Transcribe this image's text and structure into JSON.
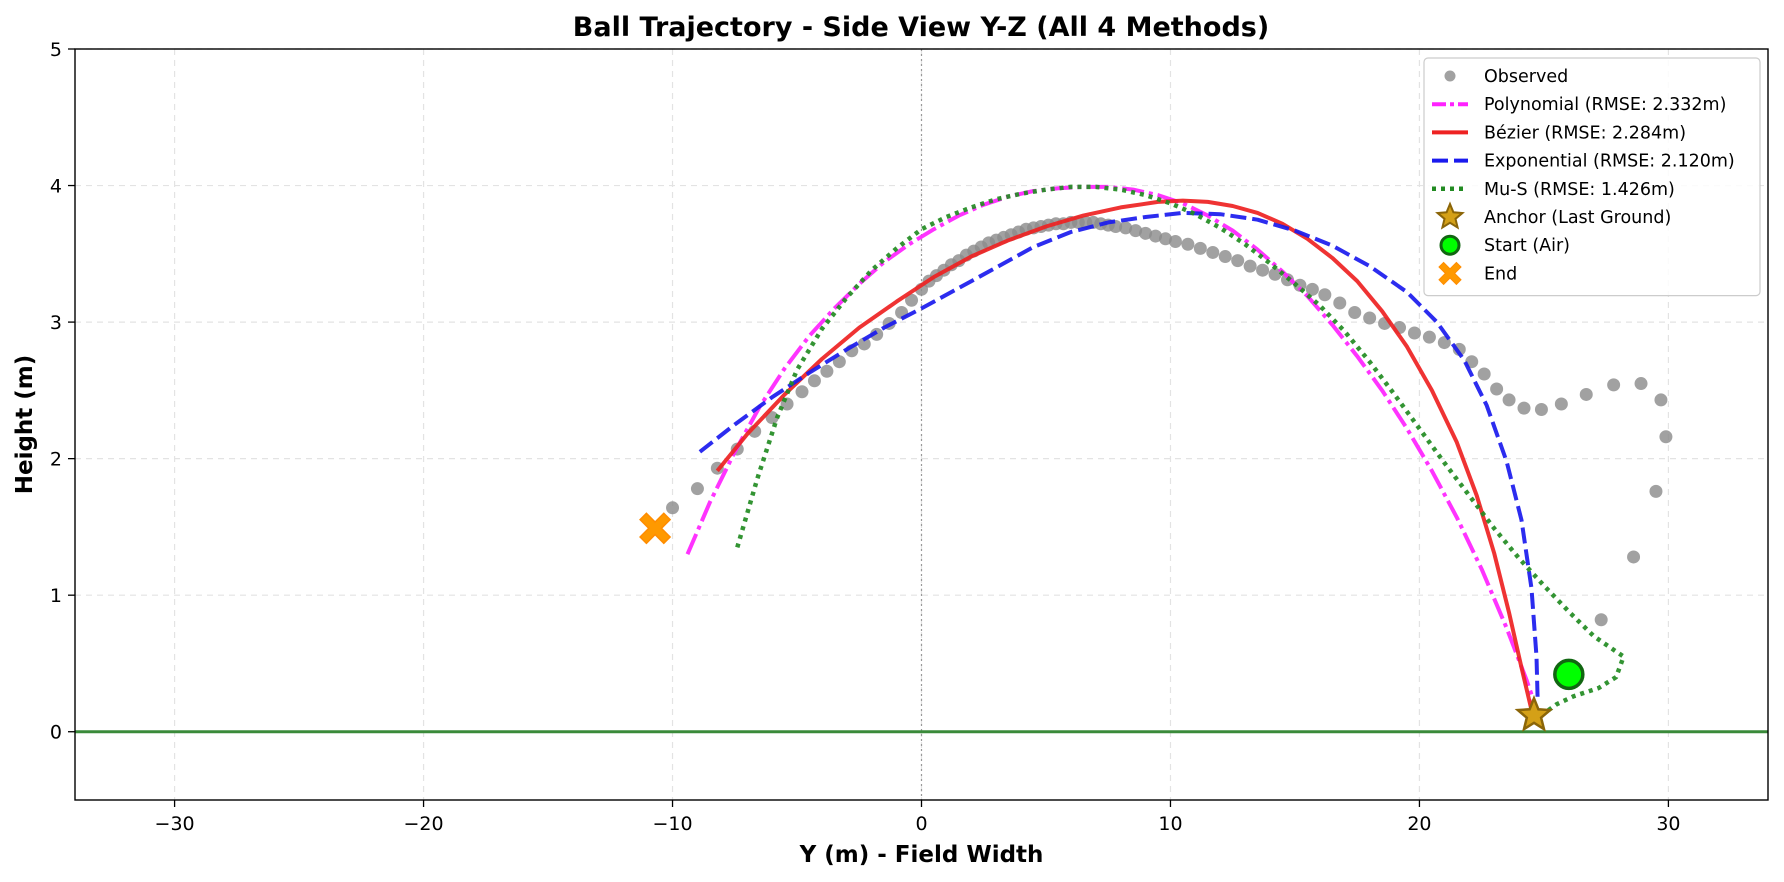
{
  "chart_data": {
    "type": "scatter",
    "title": "Ball Trajectory - Side View Y-Z (All 4 Methods)",
    "xlabel": "Y (m) - Field Width",
    "ylabel": "Height (m)",
    "xlim": [
      -34,
      34
    ],
    "ylim": [
      -0.5,
      5
    ],
    "xticks": [
      -30,
      -20,
      -10,
      0,
      10,
      20,
      30
    ],
    "yticks": [
      0,
      1,
      2,
      3,
      4,
      5
    ],
    "xtick_labels": [
      "−30",
      "−20",
      "−10",
      "0",
      "10",
      "20",
      "30"
    ],
    "ytick_labels": [
      "0",
      "1",
      "2",
      "3",
      "4",
      "5"
    ],
    "grid": true,
    "legend_position": "top-right",
    "reference_lines": {
      "ground_z": 0,
      "ground_color": "#3a8a3a",
      "center_y": 0,
      "center_color": "#999999"
    },
    "series": [
      {
        "name": "Observed",
        "kind": "scatter",
        "color": "#8c8c8c",
        "points": [
          [
            -10.0,
            1.64
          ],
          [
            -9.0,
            1.78
          ],
          [
            -8.2,
            1.93
          ],
          [
            -7.4,
            2.07
          ],
          [
            -6.7,
            2.2
          ],
          [
            -6.0,
            2.3
          ],
          [
            -5.4,
            2.4
          ],
          [
            -4.8,
            2.49
          ],
          [
            -4.3,
            2.57
          ],
          [
            -3.8,
            2.64
          ],
          [
            -3.3,
            2.71
          ],
          [
            -2.8,
            2.79
          ],
          [
            -2.3,
            2.84
          ],
          [
            -1.8,
            2.91
          ],
          [
            -1.3,
            2.99
          ],
          [
            -0.8,
            3.07
          ],
          [
            -0.4,
            3.16
          ],
          [
            0.0,
            3.24
          ],
          [
            0.3,
            3.3
          ],
          [
            0.6,
            3.34
          ],
          [
            0.9,
            3.38
          ],
          [
            1.2,
            3.42
          ],
          [
            1.5,
            3.45
          ],
          [
            1.8,
            3.49
          ],
          [
            2.1,
            3.52
          ],
          [
            2.4,
            3.55
          ],
          [
            2.7,
            3.58
          ],
          [
            3.0,
            3.6
          ],
          [
            3.3,
            3.62
          ],
          [
            3.6,
            3.64
          ],
          [
            3.9,
            3.66
          ],
          [
            4.2,
            3.68
          ],
          [
            4.5,
            3.69
          ],
          [
            4.8,
            3.7
          ],
          [
            5.1,
            3.71
          ],
          [
            5.4,
            3.72
          ],
          [
            5.7,
            3.72
          ],
          [
            6.0,
            3.73
          ],
          [
            6.3,
            3.73
          ],
          [
            6.6,
            3.73
          ],
          [
            6.9,
            3.73
          ],
          [
            7.2,
            3.72
          ],
          [
            7.5,
            3.71
          ],
          [
            7.8,
            3.7
          ],
          [
            8.2,
            3.69
          ],
          [
            8.6,
            3.67
          ],
          [
            9.0,
            3.65
          ],
          [
            9.4,
            3.63
          ],
          [
            9.8,
            3.61
          ],
          [
            10.2,
            3.59
          ],
          [
            10.7,
            3.57
          ],
          [
            11.2,
            3.54
          ],
          [
            11.7,
            3.51
          ],
          [
            12.2,
            3.48
          ],
          [
            12.7,
            3.45
          ],
          [
            13.2,
            3.41
          ],
          [
            13.7,
            3.38
          ],
          [
            14.2,
            3.35
          ],
          [
            14.7,
            3.31
          ],
          [
            15.2,
            3.27
          ],
          [
            15.7,
            3.24
          ],
          [
            16.2,
            3.2
          ],
          [
            16.8,
            3.14
          ],
          [
            17.4,
            3.07
          ],
          [
            18.0,
            3.03
          ],
          [
            18.6,
            2.99
          ],
          [
            19.2,
            2.96
          ],
          [
            19.8,
            2.92
          ],
          [
            20.4,
            2.89
          ],
          [
            21.0,
            2.85
          ],
          [
            21.6,
            2.8
          ],
          [
            22.1,
            2.71
          ],
          [
            22.6,
            2.62
          ],
          [
            23.1,
            2.51
          ],
          [
            23.6,
            2.43
          ],
          [
            24.2,
            2.37
          ],
          [
            24.9,
            2.36
          ],
          [
            25.7,
            2.4
          ],
          [
            26.7,
            2.47
          ],
          [
            27.8,
            2.54
          ],
          [
            28.9,
            2.55
          ],
          [
            29.7,
            2.43
          ],
          [
            29.9,
            2.16
          ],
          [
            29.5,
            1.76
          ],
          [
            28.6,
            1.28
          ],
          [
            27.3,
            0.82
          ]
        ]
      },
      {
        "name": "Polynomial (RMSE: 2.332m)",
        "kind": "line",
        "color": "#ff22ff",
        "dash": "22 5 4 5",
        "width": 4,
        "points": [
          [
            -9.4,
            1.3
          ],
          [
            -8.5,
            1.68
          ],
          [
            -7.5,
            2.05
          ],
          [
            -6.5,
            2.38
          ],
          [
            -5.5,
            2.66
          ],
          [
            -4.5,
            2.9
          ],
          [
            -3.5,
            3.1
          ],
          [
            -2.5,
            3.28
          ],
          [
            -1.5,
            3.44
          ],
          [
            -0.5,
            3.57
          ],
          [
            0.5,
            3.68
          ],
          [
            1.5,
            3.78
          ],
          [
            2.5,
            3.86
          ],
          [
            3.5,
            3.92
          ],
          [
            4.5,
            3.96
          ],
          [
            5.5,
            3.98
          ],
          [
            6.5,
            3.99
          ],
          [
            7.5,
            3.99
          ],
          [
            8.5,
            3.97
          ],
          [
            9.5,
            3.93
          ],
          [
            10.5,
            3.87
          ],
          [
            11.5,
            3.78
          ],
          [
            12.5,
            3.67
          ],
          [
            13.5,
            3.53
          ],
          [
            14.5,
            3.37
          ],
          [
            15.5,
            3.19
          ],
          [
            16.5,
            2.98
          ],
          [
            17.5,
            2.75
          ],
          [
            18.5,
            2.5
          ],
          [
            19.5,
            2.22
          ],
          [
            20.5,
            1.91
          ],
          [
            21.5,
            1.57
          ],
          [
            22.5,
            1.19
          ],
          [
            23.5,
            0.76
          ],
          [
            24.3,
            0.38
          ],
          [
            24.6,
            0.22
          ]
        ]
      },
      {
        "name": "Bézier (RMSE: 2.284m)",
        "kind": "line",
        "color": "#ee2222",
        "dash": "",
        "width": 4,
        "points": [
          [
            -8.2,
            1.91
          ],
          [
            -7.0,
            2.18
          ],
          [
            -5.5,
            2.47
          ],
          [
            -4.0,
            2.73
          ],
          [
            -2.5,
            2.96
          ],
          [
            -1.0,
            3.15
          ],
          [
            0.5,
            3.33
          ],
          [
            2.0,
            3.48
          ],
          [
            3.5,
            3.6
          ],
          [
            5.0,
            3.7
          ],
          [
            6.5,
            3.78
          ],
          [
            8.0,
            3.84
          ],
          [
            9.5,
            3.88
          ],
          [
            10.5,
            3.89
          ],
          [
            11.5,
            3.88
          ],
          [
            12.5,
            3.85
          ],
          [
            13.5,
            3.8
          ],
          [
            14.5,
            3.72
          ],
          [
            15.5,
            3.61
          ],
          [
            16.5,
            3.47
          ],
          [
            17.5,
            3.3
          ],
          [
            18.5,
            3.08
          ],
          [
            19.5,
            2.82
          ],
          [
            20.5,
            2.5
          ],
          [
            21.5,
            2.12
          ],
          [
            22.3,
            1.73
          ],
          [
            23.0,
            1.31
          ],
          [
            23.6,
            0.87
          ],
          [
            24.1,
            0.47
          ],
          [
            24.5,
            0.16
          ]
        ]
      },
      {
        "name": "Exponential (RMSE: 2.120m)",
        "kind": "line",
        "color": "#1a1aee",
        "dash": "16 6",
        "width": 4,
        "points": [
          [
            -8.9,
            2.05
          ],
          [
            -7.5,
            2.25
          ],
          [
            -6.0,
            2.45
          ],
          [
            -4.5,
            2.63
          ],
          [
            -3.0,
            2.8
          ],
          [
            -1.5,
            2.96
          ],
          [
            0.0,
            3.1
          ],
          [
            1.5,
            3.25
          ],
          [
            3.0,
            3.4
          ],
          [
            4.5,
            3.55
          ],
          [
            6.0,
            3.66
          ],
          [
            7.5,
            3.73
          ],
          [
            9.0,
            3.77
          ],
          [
            10.5,
            3.8
          ],
          [
            12.0,
            3.79
          ],
          [
            13.5,
            3.75
          ],
          [
            15.0,
            3.67
          ],
          [
            16.5,
            3.56
          ],
          [
            18.0,
            3.41
          ],
          [
            19.5,
            3.22
          ],
          [
            20.7,
            3.0
          ],
          [
            21.8,
            2.72
          ],
          [
            22.7,
            2.39
          ],
          [
            23.5,
            1.98
          ],
          [
            24.1,
            1.55
          ],
          [
            24.5,
            1.05
          ],
          [
            24.7,
            0.55
          ],
          [
            24.75,
            0.22
          ]
        ]
      },
      {
        "name": "Mu-S (RMSE: 1.426m)",
        "kind": "line",
        "color": "#228b22",
        "dash": "4 5",
        "width": 4.5,
        "points": [
          [
            -7.4,
            1.35
          ],
          [
            -6.6,
            1.85
          ],
          [
            -5.8,
            2.3
          ],
          [
            -5.0,
            2.65
          ],
          [
            -4.0,
            2.95
          ],
          [
            -3.0,
            3.18
          ],
          [
            -2.0,
            3.38
          ],
          [
            -1.0,
            3.54
          ],
          [
            0.0,
            3.68
          ],
          [
            1.0,
            3.77
          ],
          [
            2.0,
            3.84
          ],
          [
            3.0,
            3.9
          ],
          [
            4.0,
            3.94
          ],
          [
            5.0,
            3.97
          ],
          [
            6.0,
            3.99
          ],
          [
            7.0,
            3.99
          ],
          [
            8.0,
            3.97
          ],
          [
            9.0,
            3.93
          ],
          [
            10.0,
            3.87
          ],
          [
            11.0,
            3.79
          ],
          [
            12.0,
            3.69
          ],
          [
            13.0,
            3.57
          ],
          [
            14.0,
            3.43
          ],
          [
            15.0,
            3.28
          ],
          [
            16.0,
            3.12
          ],
          [
            17.0,
            2.93
          ],
          [
            18.0,
            2.71
          ],
          [
            19.0,
            2.47
          ],
          [
            20.0,
            2.22
          ],
          [
            21.0,
            1.97
          ],
          [
            22.0,
            1.73
          ],
          [
            23.0,
            1.49
          ],
          [
            24.0,
            1.27
          ],
          [
            25.0,
            1.07
          ],
          [
            26.0,
            0.88
          ],
          [
            27.0,
            0.7
          ],
          [
            27.8,
            0.6
          ],
          [
            28.2,
            0.55
          ],
          [
            27.9,
            0.4
          ],
          [
            27.2,
            0.32
          ],
          [
            26.2,
            0.26
          ],
          [
            25.5,
            0.2
          ],
          [
            24.9,
            0.12
          ]
        ]
      }
    ],
    "markers": [
      {
        "name": "Anchor (Last Ground)",
        "shape": "star",
        "x": 24.6,
        "z": 0.12,
        "fill": "#d4a017",
        "stroke": "#8b6508"
      },
      {
        "name": "Start (Air)",
        "shape": "circle",
        "x": 26.0,
        "z": 0.42,
        "fill": "#00ff00",
        "stroke": "#116611"
      },
      {
        "name": "End",
        "shape": "x",
        "x": -10.7,
        "z": 1.49,
        "fill": "#ff9900",
        "stroke": "#ff8c00"
      }
    ]
  }
}
